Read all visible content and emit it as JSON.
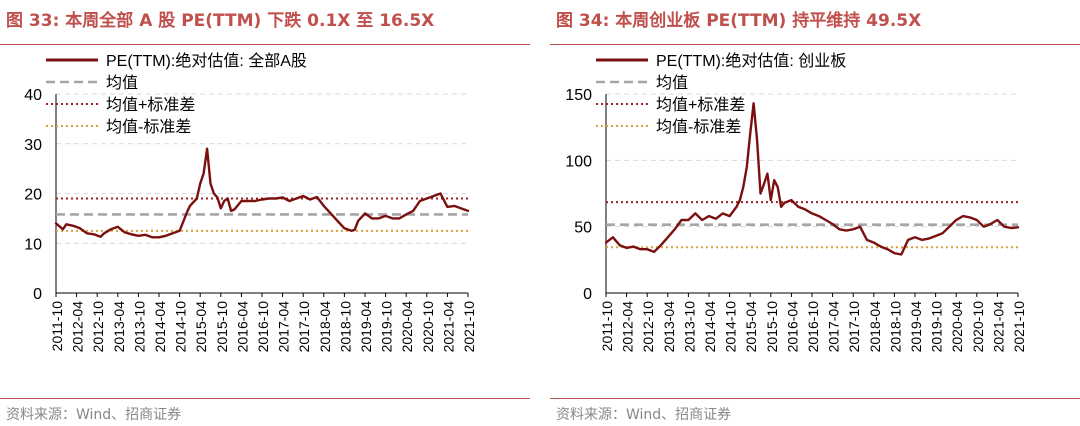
{
  "charts": [
    {
      "title": "图 33:  本周全部 A 股 PE(TTM) 下跌 0.1X 至 16.5X",
      "source": "资料来源：Wind、招商证券",
      "chart_data": {
        "type": "line",
        "ylim": [
          0,
          40
        ],
        "yticks": [
          "0",
          "10",
          "20",
          "30",
          "40"
        ],
        "xticks": [
          "2011-10",
          "2012-04",
          "2012-10",
          "2013-04",
          "2013-10",
          "2014-04",
          "2014-10",
          "2015-04",
          "2015-10",
          "2016-04",
          "2016-10",
          "2017-04",
          "2017-10",
          "2018-04",
          "2018-10",
          "2019-04",
          "2019-10",
          "2020-04",
          "2020-10",
          "2021-04",
          "2021-10"
        ],
        "grid": true,
        "legend_position": "top",
        "series": [
          {
            "name": "PE(TTM):绝对估值: 全部A股",
            "style": "solid",
            "color": "#7b1010",
            "x": [
              "2011-10",
              "2011-12",
              "2012-01",
              "2012-03",
              "2012-05",
              "2012-07",
              "2012-09",
              "2012-11",
              "2012-12",
              "2013-02",
              "2013-04",
              "2013-06",
              "2013-08",
              "2013-10",
              "2013-12",
              "2014-02",
              "2014-04",
              "2014-06",
              "2014-08",
              "2014-10",
              "2014-12",
              "2015-01",
              "2015-03",
              "2015-04",
              "2015-05",
              "2015-06",
              "2015-07",
              "2015-08",
              "2015-09",
              "2015-10",
              "2015-11",
              "2015-12",
              "2016-01",
              "2016-02",
              "2016-04",
              "2016-06",
              "2016-08",
              "2016-10",
              "2016-12",
              "2017-02",
              "2017-04",
              "2017-06",
              "2017-08",
              "2017-10",
              "2017-12",
              "2018-02",
              "2018-04",
              "2018-06",
              "2018-08",
              "2018-10",
              "2018-12",
              "2019-01",
              "2019-02",
              "2019-04",
              "2019-06",
              "2019-08",
              "2019-10",
              "2019-12",
              "2020-02",
              "2020-04",
              "2020-06",
              "2020-08",
              "2020-10",
              "2020-12",
              "2021-02",
              "2021-04",
              "2021-06",
              "2021-08",
              "2021-10"
            ],
            "values": [
              14,
              12.8,
              13.8,
              13.5,
              13,
              12,
              11.8,
              11.3,
              12,
              12.8,
              13.3,
              12.2,
              11.8,
              11.5,
              11.7,
              11.2,
              11.2,
              11.5,
              12,
              12.5,
              16,
              17.5,
              19,
              22,
              24,
              29,
              22,
              20,
              19.2,
              17,
              18.5,
              19,
              16.5,
              16.8,
              18.5,
              18.5,
              18.5,
              18.8,
              19,
              19,
              19.2,
              18.5,
              19,
              19.5,
              18.8,
              19.3,
              17.5,
              16,
              14.5,
              13,
              12.5,
              12.7,
              14.5,
              16,
              15,
              15,
              15.5,
              15,
              15,
              15.8,
              16.5,
              18.5,
              19,
              19.5,
              20,
              17.3,
              17.5,
              17,
              16.5
            ]
          },
          {
            "name": "均值",
            "style": "dashed",
            "color": "#a6a6a6",
            "value": 15.8
          },
          {
            "name": "均值+标准差",
            "style": "dotted",
            "color": "#9c2222",
            "value": 19.0
          },
          {
            "name": "均值-标准差",
            "style": "dotted",
            "color": "#d6a43a",
            "value": 12.5
          }
        ]
      }
    },
    {
      "title": "图 34:  本周创业板 PE(TTM) 持平维持 49.5X",
      "source": "资料来源：Wind、招商证券",
      "chart_data": {
        "type": "line",
        "ylim": [
          0,
          150
        ],
        "yticks": [
          "0",
          "50",
          "100",
          "150"
        ],
        "xticks": [
          "2011-10",
          "2012-04",
          "2012-10",
          "2013-04",
          "2013-10",
          "2014-04",
          "2014-10",
          "2015-04",
          "2015-10",
          "2016-04",
          "2016-10",
          "2017-04",
          "2017-10",
          "2018-04",
          "2018-10",
          "2019-04",
          "2019-10",
          "2020-04",
          "2020-10",
          "2021-04",
          "2021-10"
        ],
        "grid": true,
        "legend_position": "top",
        "series": [
          {
            "name": "PE(TTM):绝对估值: 创业板",
            "style": "solid",
            "color": "#7b1010",
            "x": [
              "2011-10",
              "2011-12",
              "2012-02",
              "2012-04",
              "2012-06",
              "2012-08",
              "2012-10",
              "2012-12",
              "2013-02",
              "2013-04",
              "2013-06",
              "2013-08",
              "2013-10",
              "2013-12",
              "2014-02",
              "2014-04",
              "2014-06",
              "2014-08",
              "2014-10",
              "2014-12",
              "2015-01",
              "2015-02",
              "2015-03",
              "2015-04",
              "2015-05",
              "2015-06",
              "2015-07",
              "2015-08",
              "2015-09",
              "2015-10",
              "2015-11",
              "2015-12",
              "2016-01",
              "2016-02",
              "2016-04",
              "2016-06",
              "2016-08",
              "2016-10",
              "2016-12",
              "2017-02",
              "2017-04",
              "2017-06",
              "2017-08",
              "2017-10",
              "2017-12",
              "2018-02",
              "2018-04",
              "2018-06",
              "2018-08",
              "2018-10",
              "2018-12",
              "2019-02",
              "2019-04",
              "2019-06",
              "2019-08",
              "2019-10",
              "2019-12",
              "2020-02",
              "2020-04",
              "2020-06",
              "2020-08",
              "2020-10",
              "2020-12",
              "2021-02",
              "2021-04",
              "2021-06",
              "2021-08",
              "2021-10"
            ],
            "values": [
              38,
              42,
              36,
              34,
              35,
              33,
              33,
              31,
              36,
              42,
              48,
              55,
              55,
              60,
              55,
              58,
              56,
              60,
              58,
              65,
              70,
              80,
              95,
              120,
              143,
              115,
              75,
              82,
              90,
              70,
              85,
              80,
              65,
              68,
              70,
              65,
              63,
              60,
              58,
              55,
              52,
              48,
              47,
              48,
              50,
              40,
              38,
              35,
              33,
              30,
              29,
              40,
              42,
              40,
              41,
              43,
              45,
              50,
              55,
              58,
              57,
              55,
              50,
              52,
              55,
              50,
              49,
              49.5
            ]
          },
          {
            "name": "均值",
            "style": "dashed",
            "color": "#a6a6a6",
            "value": 51.5
          },
          {
            "name": "均值+标准差",
            "style": "dotted",
            "color": "#9c2222",
            "value": 68.5
          },
          {
            "name": "均值-标准差",
            "style": "dotted",
            "color": "#d6a43a",
            "value": 34.5
          }
        ]
      }
    }
  ]
}
